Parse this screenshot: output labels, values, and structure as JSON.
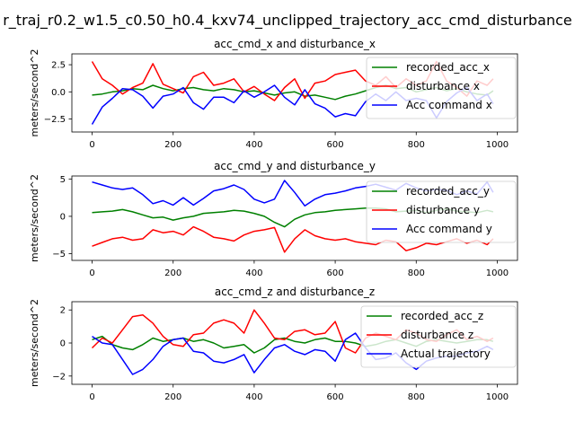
{
  "figure_title": "r_traj_r0.2_w1.5_c0.50_h0.4_kxv74_unclipped_trajectory_acc_cmd_disturbance",
  "colors": {
    "recorded": "#008000",
    "disturbance": "#ff0000",
    "command": "#0000ff"
  },
  "chart_data": [
    {
      "type": "line",
      "title": "acc_cmd_x and disturbance_x",
      "ylabel": "meters/second^2",
      "xlim": [
        -50,
        1050
      ],
      "ylim": [
        -3.7,
        3.5
      ],
      "xticks": [
        0,
        200,
        400,
        600,
        800,
        1000
      ],
      "yticks": [
        -2.5,
        0.0,
        2.5
      ],
      "ytick_labels": [
        "−2.5",
        "0.0",
        "2.5"
      ],
      "legend_position": "upper right",
      "series": [
        {
          "name": "recorded_acc_x",
          "color": "green",
          "x": [
            0,
            25,
            50,
            75,
            100,
            125,
            150,
            175,
            200,
            225,
            250,
            275,
            300,
            325,
            350,
            375,
            400,
            425,
            450,
            475,
            500,
            525,
            550,
            575,
            600,
            625,
            650,
            675,
            700,
            725,
            750,
            775,
            800,
            825,
            850,
            875,
            900,
            925,
            950,
            975,
            990
          ],
          "y": [
            -0.3,
            -0.2,
            0.0,
            0.1,
            0.3,
            0.2,
            0.6,
            0.3,
            0.1,
            0.3,
            0.4,
            0.2,
            0.1,
            0.3,
            0.2,
            0.0,
            0.1,
            -0.1,
            -0.3,
            -0.1,
            0.0,
            -0.4,
            -0.3,
            -0.5,
            -0.7,
            -0.4,
            -0.2,
            0.1,
            0.4,
            0.6,
            0.3,
            0.4,
            0.0,
            0.2,
            0.4,
            0.1,
            0.3,
            0.0,
            -0.2,
            -0.3,
            0.1
          ]
        },
        {
          "name": "disturbance x",
          "color": "red",
          "x": [
            0,
            25,
            50,
            75,
            100,
            125,
            150,
            175,
            200,
            225,
            250,
            275,
            300,
            325,
            350,
            375,
            400,
            425,
            450,
            475,
            500,
            525,
            550,
            575,
            600,
            625,
            650,
            675,
            700,
            725,
            750,
            775,
            800,
            825,
            850,
            875,
            900,
            925,
            950,
            975,
            990
          ],
          "y": [
            2.8,
            1.2,
            0.6,
            -0.2,
            0.4,
            0.8,
            2.6,
            0.7,
            0.3,
            -0.1,
            1.4,
            1.8,
            0.6,
            0.8,
            1.2,
            0.0,
            0.5,
            -0.2,
            -0.8,
            0.4,
            1.2,
            -0.6,
            0.8,
            1.0,
            1.6,
            1.8,
            2.0,
            1.0,
            0.6,
            1.4,
            0.4,
            1.2,
            0.6,
            1.0,
            2.8,
            1.0,
            0.4,
            -0.4,
            1.0,
            0.6,
            1.2
          ]
        },
        {
          "name": "Acc command x",
          "color": "blue",
          "x": [
            0,
            25,
            50,
            75,
            100,
            125,
            150,
            175,
            200,
            225,
            250,
            275,
            300,
            325,
            350,
            375,
            400,
            425,
            450,
            475,
            500,
            525,
            550,
            575,
            600,
            625,
            650,
            675,
            700,
            725,
            750,
            775,
            800,
            825,
            850,
            875,
            900,
            925,
            950,
            975,
            990
          ],
          "y": [
            -3.0,
            -1.4,
            -0.6,
            0.3,
            0.2,
            -0.4,
            -1.5,
            -0.4,
            -0.2,
            0.4,
            -1.0,
            -1.6,
            -0.5,
            -0.5,
            -1.0,
            0.1,
            -0.5,
            0.0,
            0.6,
            -0.5,
            -1.2,
            0.2,
            -1.1,
            -1.5,
            -2.3,
            -2.0,
            -2.2,
            -0.9,
            -0.2,
            -0.8,
            0.0,
            -0.8,
            -0.6,
            -0.8,
            -2.4,
            -0.9,
            -0.1,
            0.4,
            -0.8,
            -0.2,
            -1.1
          ]
        }
      ]
    },
    {
      "type": "line",
      "title": "acc_cmd_y and disturbance_y",
      "ylabel": "meters/second^2",
      "xlim": [
        -50,
        1050
      ],
      "ylim": [
        -5.9,
        5.4
      ],
      "xticks": [
        0,
        200,
        400,
        600,
        800,
        1000
      ],
      "yticks": [
        -5,
        0,
        5
      ],
      "ytick_labels": [
        "−5",
        "0",
        "5"
      ],
      "legend_position": "upper right",
      "series": [
        {
          "name": "recorded_acc_y",
          "color": "green",
          "x": [
            0,
            25,
            50,
            75,
            100,
            125,
            150,
            175,
            200,
            225,
            250,
            275,
            300,
            325,
            350,
            375,
            400,
            425,
            450,
            475,
            500,
            525,
            550,
            575,
            600,
            625,
            650,
            675,
            700,
            725,
            750,
            775,
            800,
            825,
            850,
            875,
            900,
            925,
            950,
            975,
            990
          ],
          "y": [
            0.5,
            0.6,
            0.7,
            0.9,
            0.6,
            0.2,
            -0.2,
            -0.1,
            -0.5,
            -0.2,
            0.0,
            0.4,
            0.5,
            0.6,
            0.8,
            0.7,
            0.4,
            0.0,
            -0.8,
            -1.4,
            -0.4,
            0.2,
            0.5,
            0.6,
            0.8,
            0.9,
            1.0,
            1.1,
            1.1,
            1.0,
            0.6,
            0.7,
            0.8,
            0.5,
            0.8,
            1.0,
            0.7,
            0.6,
            0.5,
            0.8,
            0.6
          ]
        },
        {
          "name": "disturbance y",
          "color": "red",
          "x": [
            0,
            25,
            50,
            75,
            100,
            125,
            150,
            175,
            200,
            225,
            250,
            275,
            300,
            325,
            350,
            375,
            400,
            425,
            450,
            475,
            500,
            525,
            550,
            575,
            600,
            625,
            650,
            675,
            700,
            725,
            750,
            775,
            800,
            825,
            850,
            875,
            900,
            925,
            950,
            975,
            990
          ],
          "y": [
            -4.0,
            -3.5,
            -3.0,
            -2.8,
            -3.2,
            -3.0,
            -1.8,
            -2.2,
            -2.0,
            -2.5,
            -1.4,
            -2.0,
            -2.8,
            -3.0,
            -3.3,
            -2.5,
            -2.0,
            -1.8,
            -1.5,
            -4.8,
            -3.0,
            -1.8,
            -2.6,
            -3.0,
            -3.2,
            -3.0,
            -3.4,
            -3.6,
            -3.8,
            -3.2,
            -3.4,
            -4.6,
            -4.2,
            -3.6,
            -3.8,
            -3.4,
            -3.0,
            -3.6,
            -3.2,
            -3.8,
            -3.0
          ]
        },
        {
          "name": "Acc command y",
          "color": "blue",
          "x": [
            0,
            25,
            50,
            75,
            100,
            125,
            150,
            175,
            200,
            225,
            250,
            275,
            300,
            325,
            350,
            375,
            400,
            425,
            450,
            475,
            500,
            525,
            550,
            575,
            600,
            625,
            650,
            675,
            700,
            725,
            750,
            775,
            800,
            825,
            850,
            875,
            900,
            925,
            950,
            975,
            990
          ],
          "y": [
            4.6,
            4.2,
            3.8,
            3.6,
            3.8,
            2.9,
            1.7,
            2.1,
            1.5,
            2.5,
            1.5,
            2.4,
            3.4,
            3.7,
            4.2,
            3.6,
            2.3,
            1.8,
            2.3,
            4.8,
            3.2,
            1.4,
            2.3,
            2.9,
            3.1,
            3.4,
            3.8,
            4.0,
            4.3,
            3.9,
            3.5,
            4.4,
            3.8,
            3.4,
            3.6,
            3.5,
            2.9,
            3.4,
            3.0,
            4.6,
            3.2
          ]
        }
      ]
    },
    {
      "type": "line",
      "title": "acc_cmd_z and disturbance_z",
      "ylabel": "meters/second^2",
      "xlim": [
        -50,
        1050
      ],
      "ylim": [
        -2.5,
        2.5
      ],
      "xticks": [
        0,
        200,
        400,
        600,
        800,
        1000
      ],
      "yticks": [
        -2,
        0,
        2
      ],
      "ytick_labels": [
        "−2",
        "0",
        "2"
      ],
      "legend_position": "upper right",
      "series": [
        {
          "name": "recorded_acc_z",
          "color": "green",
          "x": [
            0,
            25,
            50,
            75,
            100,
            125,
            150,
            175,
            200,
            225,
            250,
            275,
            300,
            325,
            350,
            375,
            400,
            425,
            450,
            475,
            500,
            525,
            550,
            575,
            600,
            625,
            650,
            675,
            700,
            725,
            750,
            775,
            800,
            825,
            850,
            875,
            900,
            925,
            950,
            975,
            990
          ],
          "y": [
            0.2,
            0.4,
            -0.1,
            -0.3,
            -0.4,
            -0.1,
            0.3,
            0.1,
            0.2,
            0.3,
            0.1,
            0.2,
            0.0,
            -0.3,
            -0.2,
            -0.1,
            -0.6,
            -0.3,
            0.2,
            0.3,
            0.1,
            0.0,
            0.2,
            0.3,
            0.1,
            0.1,
            0.0,
            -0.2,
            -0.1,
            0.1,
            0.2,
            0.0,
            -0.2,
            0.1,
            0.2,
            0.1,
            0.0,
            0.1,
            0.2,
            0.2,
            0.1
          ]
        },
        {
          "name": "disturbance z",
          "color": "red",
          "x": [
            0,
            25,
            50,
            75,
            100,
            125,
            150,
            175,
            200,
            225,
            250,
            275,
            300,
            325,
            350,
            375,
            400,
            425,
            450,
            475,
            500,
            525,
            550,
            575,
            600,
            625,
            650,
            675,
            700,
            725,
            750,
            775,
            800,
            825,
            850,
            875,
            900,
            925,
            950,
            975,
            990
          ],
          "y": [
            -0.3,
            0.3,
            0.0,
            0.8,
            1.6,
            1.7,
            1.2,
            0.4,
            -0.1,
            -0.2,
            0.5,
            0.6,
            1.2,
            1.4,
            1.2,
            0.6,
            2.0,
            1.2,
            0.3,
            0.2,
            0.7,
            0.8,
            0.5,
            0.6,
            1.3,
            -0.3,
            -0.6,
            0.3,
            0.6,
            0.4,
            0.2,
            0.8,
            0.6,
            0.2,
            0.1,
            0.5,
            0.8,
            0.2,
            0.4,
            0.1,
            0.3
          ]
        },
        {
          "name": "Actual trajectory",
          "color": "blue",
          "x": [
            0,
            25,
            50,
            75,
            100,
            125,
            150,
            175,
            200,
            225,
            250,
            275,
            300,
            325,
            350,
            375,
            400,
            425,
            450,
            475,
            500,
            525,
            550,
            575,
            600,
            625,
            650,
            675,
            700,
            725,
            750,
            775,
            800,
            825,
            850,
            875,
            900,
            925,
            950,
            975,
            990
          ],
          "y": [
            0.4,
            0.0,
            -0.1,
            -1.0,
            -1.9,
            -1.6,
            -1.0,
            -0.2,
            0.2,
            0.3,
            -0.5,
            -0.6,
            -1.1,
            -1.2,
            -1.0,
            -0.7,
            -1.8,
            -1.0,
            -0.3,
            -0.1,
            -0.5,
            -0.7,
            -0.4,
            -0.5,
            -1.1,
            0.2,
            0.6,
            -0.3,
            -1.0,
            -0.9,
            -0.6,
            -1.2,
            -1.6,
            -1.1,
            -0.9,
            -0.8,
            -0.8,
            -0.6,
            -0.5,
            -0.2,
            -0.4
          ]
        }
      ]
    }
  ]
}
